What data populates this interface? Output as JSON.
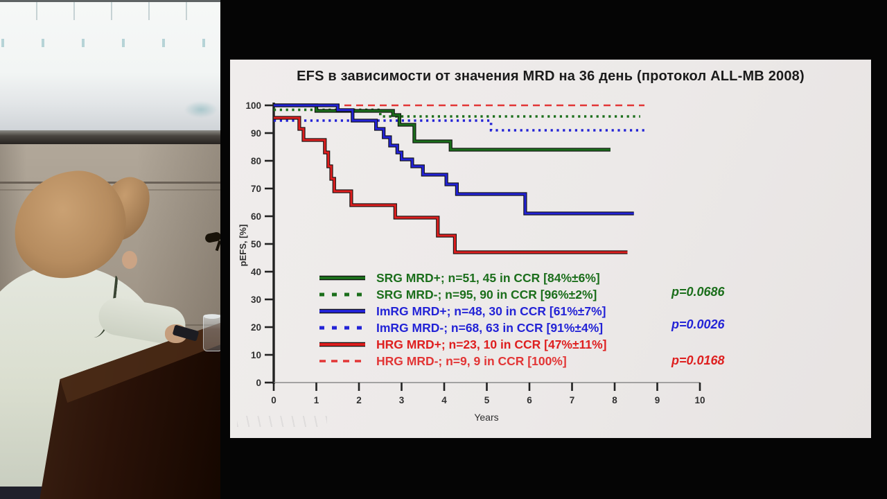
{
  "chart_data": {
    "type": "line",
    "subtype": "kaplan-meier-step",
    "title": "EFS в зависимости от значения MRD на 36 день (протокол ALL-MB 2008)",
    "xlabel": "Years",
    "ylabel": "pEFS, [%]",
    "xlim": [
      0,
      10
    ],
    "ylim": [
      0,
      100
    ],
    "xticks": [
      0,
      1,
      2,
      3,
      4,
      5,
      6,
      7,
      8,
      9,
      10
    ],
    "yticks": [
      0,
      10,
      20,
      30,
      40,
      50,
      60,
      70,
      80,
      90,
      100
    ],
    "grid": false,
    "legend_position": "inside-lower-left",
    "series": [
      {
        "name": "SRG MRD+; n=51, 45 in CCR [84%±6%]",
        "color": "#1b6e1b",
        "line": "solid",
        "points": [
          [
            0,
            100
          ],
          [
            1.0,
            100
          ],
          [
            1.0,
            98
          ],
          [
            2.8,
            98
          ],
          [
            2.8,
            96.5
          ],
          [
            2.95,
            96.5
          ],
          [
            2.95,
            93
          ],
          [
            3.3,
            93
          ],
          [
            3.3,
            87
          ],
          [
            4.15,
            87
          ],
          [
            4.15,
            84
          ],
          [
            7.9,
            84
          ]
        ]
      },
      {
        "name": "SRG MRD-; n=95, 90 in CCR [96%±2%]",
        "color": "#1b6e1b",
        "line": "dotted",
        "points": [
          [
            0,
            98.4
          ],
          [
            2.5,
            98.4
          ],
          [
            2.5,
            96
          ],
          [
            8.6,
            96
          ]
        ]
      },
      {
        "name": "ImRG MRD+; n=48, 30 in CCR [61%±7%]",
        "color": "#2323d6",
        "line": "solid",
        "points": [
          [
            0,
            100
          ],
          [
            1.5,
            100
          ],
          [
            1.5,
            98.3
          ],
          [
            1.85,
            98.3
          ],
          [
            1.85,
            94.5
          ],
          [
            2.4,
            94.5
          ],
          [
            2.4,
            91.5
          ],
          [
            2.58,
            91.5
          ],
          [
            2.58,
            88.5
          ],
          [
            2.73,
            88.5
          ],
          [
            2.73,
            85.5
          ],
          [
            2.9,
            85.5
          ],
          [
            2.9,
            83
          ],
          [
            3.0,
            83
          ],
          [
            3.0,
            80.5
          ],
          [
            3.25,
            80.5
          ],
          [
            3.25,
            78
          ],
          [
            3.5,
            78
          ],
          [
            3.5,
            75
          ],
          [
            4.05,
            75
          ],
          [
            4.05,
            71.5
          ],
          [
            4.3,
            71.5
          ],
          [
            4.3,
            68
          ],
          [
            5.9,
            68
          ],
          [
            5.9,
            61
          ],
          [
            8.45,
            61
          ]
        ]
      },
      {
        "name": "ImRG MRD-; n=68, 63 in CCR [91%±4%]",
        "color": "#2323d6",
        "line": "dotted",
        "points": [
          [
            0,
            94.5
          ],
          [
            5.1,
            94.5
          ],
          [
            5.1,
            91
          ],
          [
            8.75,
            91
          ]
        ]
      },
      {
        "name": "HRG MRD+; n=23, 10 in CCR [47%±11%]",
        "color": "#de1f1f",
        "line": "solid",
        "points": [
          [
            0,
            95.5
          ],
          [
            0.6,
            95.5
          ],
          [
            0.6,
            91.5
          ],
          [
            0.7,
            91.5
          ],
          [
            0.7,
            87.5
          ],
          [
            1.2,
            87.5
          ],
          [
            1.2,
            83
          ],
          [
            1.28,
            83
          ],
          [
            1.28,
            78
          ],
          [
            1.35,
            78
          ],
          [
            1.35,
            73.5
          ],
          [
            1.42,
            73.5
          ],
          [
            1.42,
            69
          ],
          [
            1.82,
            69
          ],
          [
            1.82,
            64
          ],
          [
            2.85,
            64
          ],
          [
            2.85,
            59.5
          ],
          [
            3.85,
            59.5
          ],
          [
            3.85,
            53
          ],
          [
            4.25,
            53
          ],
          [
            4.25,
            47
          ],
          [
            8.3,
            47
          ]
        ]
      },
      {
        "name": "HRG MRD-; n=9, 9 in CCR [100%]",
        "color": "#e23535",
        "line": "dashed",
        "points": [
          [
            0,
            100
          ],
          [
            8.7,
            100
          ]
        ]
      }
    ],
    "p_values": [
      {
        "label": "p=0.0686",
        "color": "#1b6e1b"
      },
      {
        "label": "p=0.0026",
        "color": "#2323d6"
      },
      {
        "label": "p=0.0168",
        "color": "#de1f1f"
      }
    ]
  }
}
